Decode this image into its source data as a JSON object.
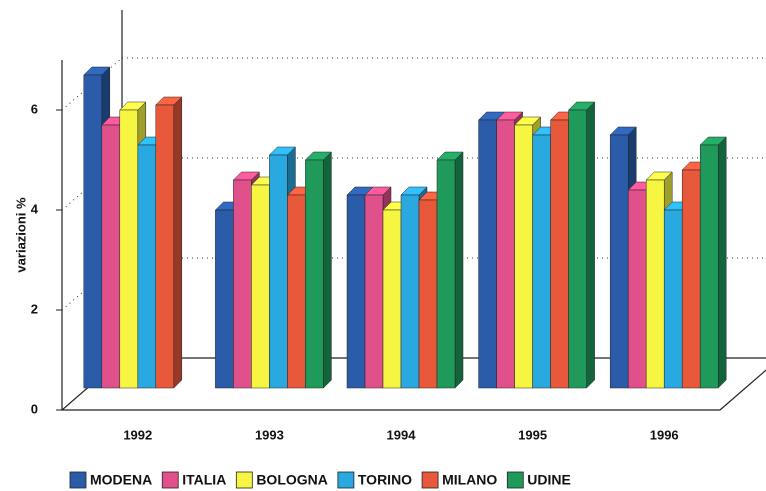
{
  "chart_data": {
    "type": "bar3d",
    "y_label": "variazioni %",
    "categories": [
      "1992",
      "1993",
      "1994",
      "1995",
      "1996"
    ],
    "series": [
      {
        "name": "MODENA",
        "color": "#2a5caa",
        "values": [
          6.7,
          4.0,
          4.3,
          5.8,
          5.5
        ]
      },
      {
        "name": "ITALIA",
        "color": "#e0508a",
        "values": [
          5.7,
          4.6,
          4.3,
          5.8,
          4.4
        ]
      },
      {
        "name": "BOLOGNA",
        "color": "#f5f542",
        "values": [
          6.0,
          4.5,
          4.0,
          5.7,
          4.6
        ]
      },
      {
        "name": "TORINO",
        "color": "#2aa8e0",
        "values": [
          5.3,
          5.1,
          4.3,
          5.5,
          4.0
        ]
      },
      {
        "name": "MILANO",
        "color": "#e8583a",
        "values": [
          6.1,
          4.3,
          4.2,
          5.8,
          4.8
        ]
      },
      {
        "name": "UDINE",
        "color": "#1f9a5a",
        "values": [
          null,
          5.0,
          5.0,
          6.0,
          5.3
        ]
      }
    ],
    "ylim": [
      0,
      7
    ],
    "yticks": [
      0,
      2,
      4,
      6
    ],
    "grid": true
  }
}
